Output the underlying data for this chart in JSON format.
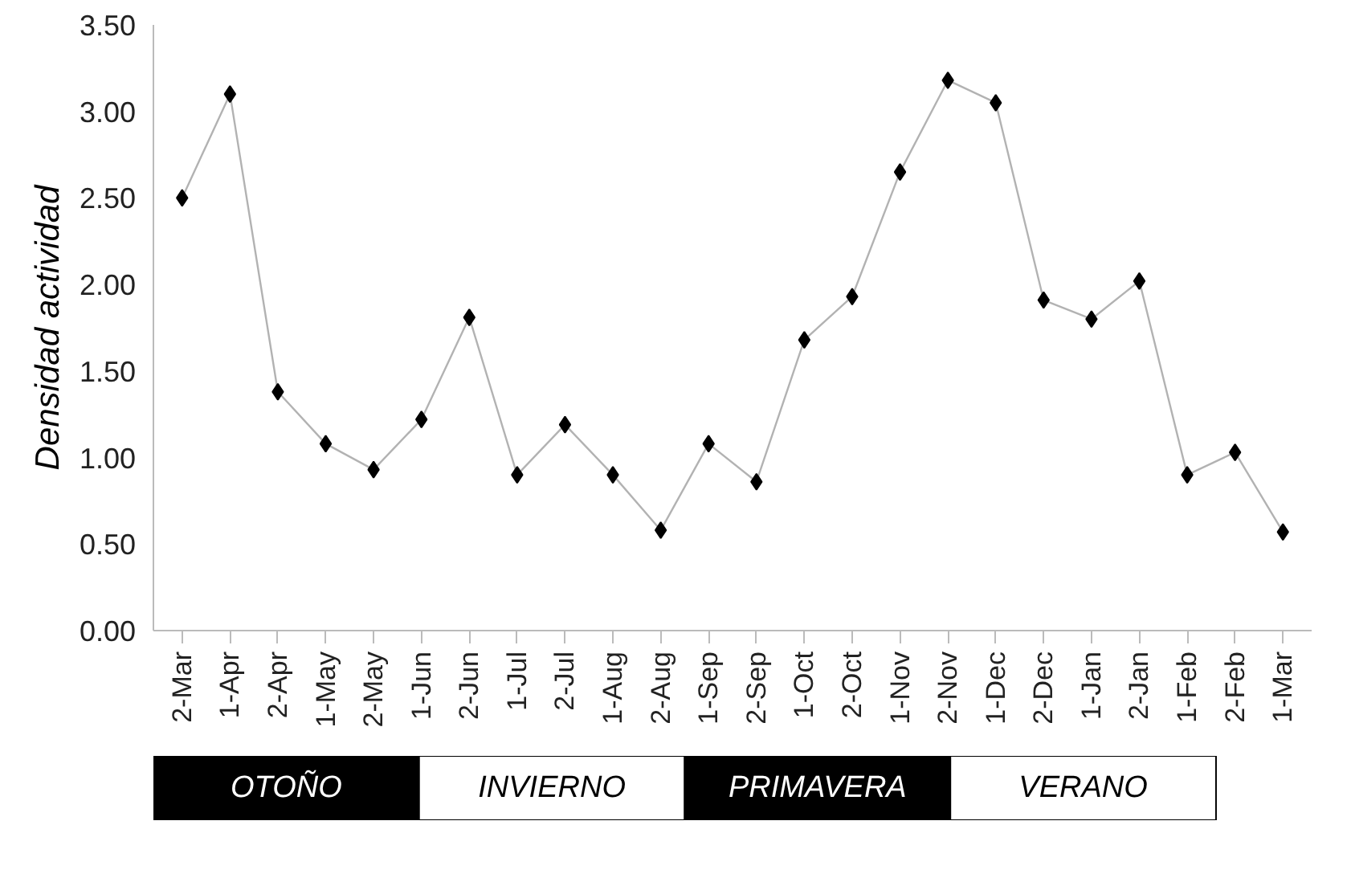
{
  "chart_data": {
    "type": "line",
    "ylabel": "Densidad actividad",
    "categories": [
      "2-Mar",
      "1-Apr",
      "2-Apr",
      "1-May",
      "2-May",
      "1-Jun",
      "2-Jun",
      "1-Jul",
      "2-Jul",
      "1-Aug",
      "2-Aug",
      "1-Sep",
      "2-Sep",
      "1-Oct",
      "2-Oct",
      "1-Nov",
      "2-Nov",
      "1-Dec",
      "2-Dec",
      "1-Jan",
      "2-Jan",
      "1-Feb",
      "2-Feb",
      "1-Mar"
    ],
    "series": [
      {
        "color": "#000000",
        "values": [
          2.5,
          3.1,
          1.38,
          1.08,
          0.93,
          1.22,
          1.81,
          0.9,
          1.19,
          0.9,
          0.58,
          1.08,
          0.86,
          1.68,
          1.93,
          2.65,
          3.18,
          3.05,
          1.91,
          1.8,
          2.02,
          0.9,
          1.03,
          0.57
        ]
      }
    ],
    "ylim": [
      0,
      3.5
    ],
    "yticks": [
      {
        "value": 0,
        "label": "0.00"
      },
      {
        "value": 0.5,
        "label": "0.50"
      },
      {
        "value": 1,
        "label": "1.00"
      },
      {
        "value": 1.5,
        "label": "1.50"
      },
      {
        "value": 2,
        "label": "2.00"
      },
      {
        "value": 2.5,
        "label": "2.50"
      },
      {
        "value": 3,
        "label": "3.00"
      },
      {
        "value": 3.5,
        "label": "3.50"
      }
    ],
    "grid": false,
    "marker": "diamond",
    "line_style": "solid",
    "annotations": [
      "OTOÑO",
      "INVIERNO",
      "PRIMAVERA",
      "VERANO"
    ]
  }
}
